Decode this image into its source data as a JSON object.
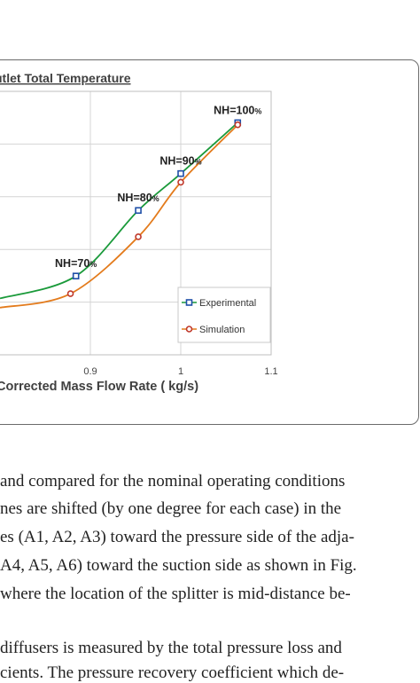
{
  "chart_data": {
    "type": "line",
    "title": "utlet Total Temperature",
    "xlabel": "Corrected Mass Flow Rate ( kg/s)",
    "ylabel": "",
    "xlim": [
      0.8,
      1.1
    ],
    "xticks": [
      "0.9",
      "1",
      "1.1"
    ],
    "grid": true,
    "legend_position": "bottom-right",
    "series": [
      {
        "name": "Experimental",
        "color": "#1a9a3a",
        "marker": "square",
        "marker_color": "#1f4fa8",
        "x": [
          0.8,
          0.884,
          0.953,
          1.0,
          1.063
        ],
        "y": [
          0.214,
          0.299,
          0.548,
          0.688,
          0.881
        ]
      },
      {
        "name": "Simulation",
        "color": "#e37b1c",
        "marker": "circle",
        "marker_color": "#c0392b",
        "x": [
          0.8,
          0.878,
          0.953,
          1.0,
          1.063
        ],
        "y": [
          0.179,
          0.232,
          0.448,
          0.655,
          0.873
        ]
      }
    ],
    "annotations": [
      {
        "text": "NH=70",
        "suffix": "%",
        "x": 0.884,
        "y": 0.299
      },
      {
        "text": "NH=80",
        "suffix": "%",
        "x": 0.953,
        "y": 0.548
      },
      {
        "text": "NH=90",
        "suffix": "%",
        "x": 1.0,
        "y": 0.688
      },
      {
        "text": "NH=100",
        "suffix": "%",
        "x": 1.063,
        "y": 0.881
      }
    ]
  },
  "body_text": {
    "lines": [
      "and compared for the nominal operating conditions",
      "nes are shifted (by one degree for each case) in the",
      "es (A1, A2, A3) toward the pressure side of the adja-",
      "A4, A5, A6) toward the suction side as shown in Fig.",
      "where the location of the splitter is mid-distance be-",
      "",
      "diffusers is measured by the total pressure loss and",
      "cients. The pressure recovery coefficient which de-"
    ]
  }
}
